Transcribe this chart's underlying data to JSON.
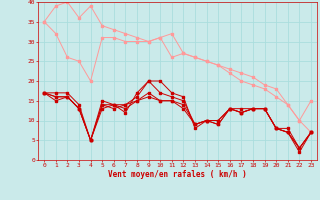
{
  "background_color": "#caeaea",
  "grid_color": "#aadddd",
  "xlabel": "Vent moyen/en rafales ( km/h )",
  "xlabel_color": "#cc0000",
  "tick_color": "#cc0000",
  "xlim": [
    -0.5,
    23.5
  ],
  "ylim": [
    0,
    40
  ],
  "yticks": [
    0,
    5,
    10,
    15,
    20,
    25,
    30,
    35,
    40
  ],
  "xticks": [
    0,
    1,
    2,
    3,
    4,
    5,
    6,
    7,
    8,
    9,
    10,
    11,
    12,
    13,
    14,
    15,
    16,
    17,
    18,
    19,
    20,
    21,
    22,
    23
  ],
  "lines_light": [
    {
      "x": [
        0,
        1,
        2,
        3,
        4,
        5,
        6,
        7,
        8,
        9,
        10,
        11,
        12,
        13,
        14,
        15,
        16,
        17,
        18,
        19,
        20,
        21,
        22,
        23
      ],
      "y": [
        35,
        32,
        26,
        25,
        20,
        31,
        31,
        30,
        30,
        30,
        31,
        32,
        27,
        26,
        25,
        24,
        23,
        22,
        21,
        19,
        18,
        14,
        10,
        15
      ]
    },
    {
      "x": [
        0,
        1,
        2,
        3,
        4,
        5,
        6,
        7,
        8,
        9,
        10,
        11,
        12,
        13,
        14,
        15,
        16,
        17,
        18,
        19,
        20,
        21,
        22,
        23
      ],
      "y": [
        35,
        39,
        40,
        36,
        39,
        34,
        33,
        32,
        31,
        30,
        31,
        26,
        27,
        26,
        25,
        24,
        22,
        20,
        19,
        18,
        16,
        14,
        10,
        7
      ]
    }
  ],
  "lines_dark": [
    {
      "x": [
        0,
        1,
        2,
        3,
        4,
        5,
        6,
        7,
        8,
        9,
        10,
        11,
        12,
        13,
        14,
        15,
        16,
        17,
        18,
        19,
        20,
        21,
        22,
        23
      ],
      "y": [
        17,
        16,
        16,
        13,
        5,
        13,
        14,
        12,
        17,
        20,
        20,
        17,
        16,
        8,
        10,
        10,
        13,
        12,
        13,
        13,
        8,
        7,
        2,
        7
      ]
    },
    {
      "x": [
        0,
        1,
        2,
        3,
        4,
        5,
        6,
        7,
        8,
        9,
        10,
        11,
        12,
        13,
        14,
        15,
        16,
        17,
        18,
        19,
        20,
        21,
        22,
        23
      ],
      "y": [
        17,
        15,
        16,
        13,
        5,
        14,
        13,
        14,
        15,
        16,
        15,
        15,
        13,
        9,
        10,
        9,
        13,
        12,
        13,
        13,
        8,
        8,
        3,
        7
      ]
    },
    {
      "x": [
        0,
        1,
        2,
        3,
        4,
        5,
        6,
        7,
        8,
        9,
        10,
        11,
        12,
        13,
        14,
        15,
        16,
        17,
        18,
        19,
        20,
        21,
        22,
        23
      ],
      "y": [
        17,
        16,
        16,
        13,
        5,
        14,
        14,
        13,
        15,
        17,
        15,
        15,
        14,
        9,
        10,
        9,
        13,
        12,
        13,
        13,
        8,
        7,
        3,
        7
      ]
    },
    {
      "x": [
        0,
        1,
        2,
        3,
        4,
        5,
        6,
        7,
        8,
        9,
        10,
        11,
        12,
        13,
        14,
        15,
        16,
        17,
        18,
        19,
        20,
        21,
        22,
        23
      ],
      "y": [
        17,
        17,
        17,
        14,
        5,
        15,
        14,
        14,
        16,
        20,
        17,
        16,
        15,
        9,
        10,
        10,
        13,
        13,
        13,
        13,
        8,
        7,
        3,
        7
      ]
    }
  ],
  "light_color": "#ff9999",
  "dark_color": "#cc0000",
  "marker_size": 1.5,
  "linewidth_light": 0.7,
  "linewidth_dark": 0.7
}
